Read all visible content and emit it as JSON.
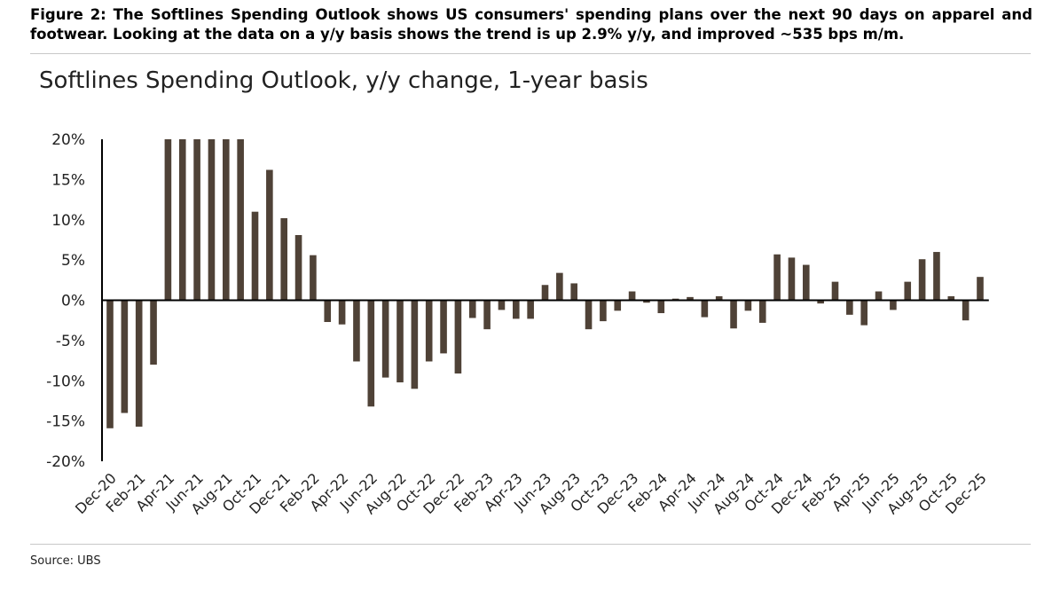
{
  "figure_caption": "Figure 2: The Softlines Spending Outlook shows US consumers' spending plans over the next 90 days on apparel and footwear. Looking at the data on a y/y basis shows the trend is up 2.9% y/y, and improved ~535 bps m/m.",
  "source": "Source: UBS",
  "colors": {
    "bar": "#4f4237",
    "axis": "#000000"
  },
  "chart_data": {
    "type": "bar",
    "title": "Softlines Spending Outlook, y/y change, 1-year basis",
    "xlabel": "",
    "ylabel": "",
    "ylim": [
      -20,
      20
    ],
    "yticks": [
      20,
      15,
      10,
      5,
      0,
      -5,
      -10,
      -15,
      -20
    ],
    "ytick_labels": [
      "20%",
      "15%",
      "10%",
      "5%",
      "0%",
      "-5%",
      "-10%",
      "-15%",
      "-20%"
    ],
    "categories": [
      "Dec-20",
      "Jan-21",
      "Feb-21",
      "Mar-21",
      "Apr-21",
      "May-21",
      "Jun-21",
      "Jul-21",
      "Aug-21",
      "Sep-21",
      "Oct-21",
      "Nov-21",
      "Dec-21",
      "Jan-22",
      "Feb-22",
      "Mar-22",
      "Apr-22",
      "May-22",
      "Jun-22",
      "Jul-22",
      "Aug-22",
      "Sep-22",
      "Oct-22",
      "Nov-22",
      "Dec-22",
      "Jan-23",
      "Feb-23",
      "Mar-23",
      "Apr-23",
      "May-23",
      "Jun-23",
      "Jul-23",
      "Aug-23",
      "Sep-23",
      "Oct-23",
      "Nov-23",
      "Dec-23",
      "Jan-24",
      "Feb-24",
      "Mar-24",
      "Apr-24",
      "May-24",
      "Jun-24",
      "Jul-24",
      "Aug-24",
      "Sep-24",
      "Oct-24",
      "Nov-24",
      "Dec-24",
      "Jan-25",
      "Feb-25",
      "Mar-25",
      "Apr-25",
      "May-25",
      "Jun-25",
      "Jul-25",
      "Aug-25",
      "Sep-25",
      "Oct-25",
      "Nov-25",
      "Dec-25"
    ],
    "tick_labels": [
      "Dec-20",
      "Feb-21",
      "Apr-21",
      "Jun-21",
      "Aug-21",
      "Oct-21",
      "Dec-21",
      "Feb-22",
      "Apr-22",
      "Jun-22",
      "Aug-22",
      "Oct-22",
      "Dec-22",
      "Feb-23",
      "Apr-23",
      "Jun-23",
      "Aug-23",
      "Oct-23",
      "Dec-23",
      "Feb-24",
      "Apr-24",
      "Jun-24",
      "Aug-24",
      "Oct-24",
      "Dec-24",
      "Feb-25",
      "Apr-25",
      "Jun-25",
      "Aug-25",
      "Oct-25",
      "Dec-25"
    ],
    "series": [
      {
        "name": "Softlines Spending Outlook y/y",
        "values": [
          -15.9,
          -14.0,
          -15.7,
          -8.0,
          20,
          20,
          20,
          20,
          20,
          20,
          11.0,
          16.2,
          10.2,
          8.1,
          5.6,
          -2.7,
          -3.0,
          -7.6,
          -13.2,
          -9.6,
          -10.2,
          -11.0,
          -7.6,
          -6.6,
          -9.1,
          -2.2,
          -3.6,
          -1.2,
          -2.3,
          -2.3,
          1.9,
          3.4,
          2.1,
          -3.6,
          -2.6,
          -1.3,
          1.1,
          -0.3,
          -1.6,
          0.2,
          0.4,
          -2.1,
          0.5,
          -3.5,
          -1.3,
          -2.8,
          5.7,
          5.3,
          4.4,
          -0.4,
          2.3,
          -1.8,
          -3.1,
          1.1,
          -1.2,
          2.3,
          5.1,
          6.0,
          0.5,
          -2.5,
          2.9
        ]
      }
    ]
  }
}
